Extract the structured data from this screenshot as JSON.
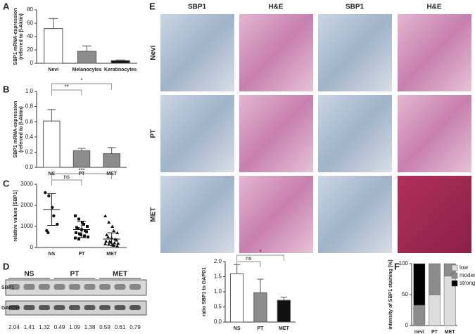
{
  "panel_labels": [
    "A",
    "B",
    "C",
    "D",
    "E",
    "F"
  ],
  "chart_data": [
    {
      "type": "bar",
      "ylabel": "SBP1 mRNA-expression\n(referred to β-Aktin)",
      "categories": [
        "Nevi",
        "Melanocytes",
        "Keratinocytes"
      ],
      "values": [
        52,
        18,
        4
      ],
      "errors": [
        15,
        8,
        1
      ],
      "colors": [
        "#ffffff",
        "#8c8c8c",
        "#111111"
      ],
      "ylim": [
        0,
        80
      ],
      "yticks": [
        0,
        20,
        40,
        60,
        80
      ]
    },
    {
      "type": "bar",
      "ylabel": "SBP1 mRNA-expression\n(referred to β-Aktin)",
      "categories": [
        "NS",
        "PT",
        "MET"
      ],
      "values": [
        0.61,
        0.22,
        0.18
      ],
      "errors": [
        0.15,
        0.03,
        0.08
      ],
      "colors": [
        "#ffffff",
        "#8c8c8c",
        "#8c8c8c"
      ],
      "ylim": [
        0,
        1
      ],
      "yticks": [
        {
          "value": 0,
          "label": "0.0"
        },
        0.2,
        0.4,
        0.6,
        0.8,
        {
          "value": 1,
          "label": "1.0"
        }
      ],
      "annotations": [
        "**",
        "*"
      ]
    },
    {
      "type": "scatter",
      "ylabel": "relative values [SBP1]",
      "categories": [
        "NS",
        "PT",
        "MET"
      ],
      "ylim": [
        0,
        3000
      ],
      "yticks": [
        0,
        1000,
        2000,
        3000
      ],
      "annotations": [
        "ns",
        "***"
      ],
      "series": [
        {
          "name": "NS",
          "marker": "circle",
          "mean": 1800,
          "sd": 750,
          "values": [
            2600,
            2450,
            1900,
            1500,
            1100,
            800,
            700
          ]
        },
        {
          "name": "PT",
          "marker": "square",
          "mean": 850,
          "sd": 380,
          "values": [
            1500,
            1350,
            1200,
            1100,
            1000,
            950,
            900,
            850,
            800,
            750,
            700,
            650,
            600,
            550,
            500,
            450,
            400
          ]
        },
        {
          "name": "MET",
          "marker": "triangle",
          "mean": 400,
          "sd": 300,
          "values": [
            1500,
            1200,
            1000,
            800,
            700,
            600,
            500,
            450,
            400,
            350,
            300,
            280,
            250,
            220,
            200,
            180,
            150,
            120,
            100,
            80
          ]
        }
      ]
    },
    {
      "type": "bar",
      "ylabel": "ratio SBP1 to GAPD1",
      "categories": [
        "NS",
        "PT",
        "MET"
      ],
      "values": [
        1.6,
        0.97,
        0.72
      ],
      "errors": [
        0.3,
        0.45,
        0.1
      ],
      "colors": [
        "#ffffff",
        "#8c8c8c",
        "#111111"
      ],
      "ylim": [
        0,
        2
      ],
      "yticks": [
        {
          "value": 0,
          "label": "0.0"
        },
        0.5,
        {
          "value": 1,
          "label": "1.0"
        },
        1.5,
        {
          "value": 2,
          "label": "2.0"
        }
      ],
      "annotations": [
        "ns",
        "*"
      ]
    },
    {
      "type": "stacked_bar",
      "ylabel": "intensity of SBP1 staining [%]",
      "categories": [
        "nevi",
        "PT",
        "MET"
      ],
      "ylim": [
        0,
        100
      ],
      "yticks": [
        0,
        50,
        100
      ],
      "legend": "upper right",
      "series": [
        {
          "name": "low",
          "color": "#dcdcdc",
          "values": [
            0,
            50,
            80
          ]
        },
        {
          "name": "moderate",
          "color": "#8c8c8c",
          "values": [
            33,
            50,
            20
          ]
        },
        {
          "name": "strong",
          "color": "#000000",
          "values": [
            67,
            0,
            0
          ]
        }
      ]
    }
  ],
  "blot": {
    "groups": [
      "NS",
      "PT",
      "MET"
    ],
    "rows": [
      "SBP1",
      "GAPDH"
    ],
    "ratios": [
      2.04,
      1.41,
      1.32,
      0.49,
      1.09,
      1.38,
      0.59,
      0.61,
      0.79
    ]
  },
  "histology": {
    "columns": [
      "SBP1",
      "H&E",
      "SBP1",
      "H&E"
    ],
    "rows": [
      "Nevi",
      "PT",
      "MET"
    ]
  }
}
